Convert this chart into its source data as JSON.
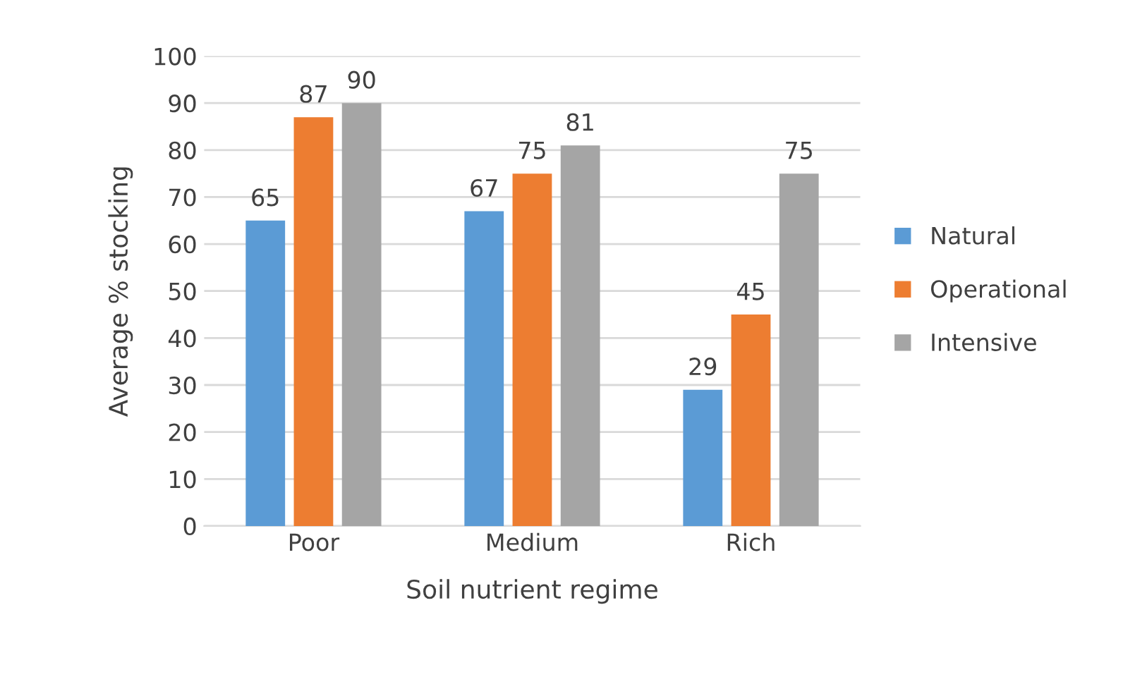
{
  "chart_data": {
    "type": "bar",
    "xlabel": "Soil nutrient regime",
    "ylabel": "Average % stocking",
    "categories": [
      "Poor",
      "Medium",
      "Rich"
    ],
    "series": [
      {
        "name": "Natural",
        "color": "#5b9bd5",
        "values": [
          65,
          67,
          29
        ]
      },
      {
        "name": "Operational",
        "color": "#ed7d31",
        "values": [
          87,
          75,
          45
        ]
      },
      {
        "name": "Intensive",
        "color": "#a5a5a5",
        "values": [
          90,
          81,
          75
        ]
      }
    ],
    "ylim": [
      0,
      100
    ],
    "yticks": [
      0,
      10,
      20,
      30,
      40,
      50,
      60,
      70,
      80,
      90,
      100
    ],
    "grid": "y",
    "legend": "right",
    "data_labels": true
  }
}
